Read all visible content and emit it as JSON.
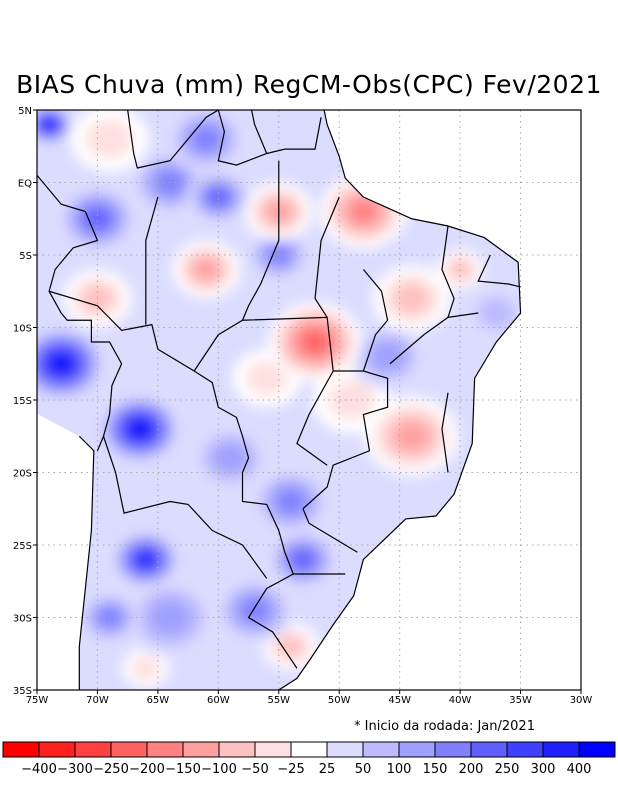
{
  "title": "BIAS Chuva (mm) RegCM-Obs(CPC) Fev/2021",
  "note": "* Inicio da rodada: Jan/2021",
  "chart_data": {
    "type": "heatmap",
    "title": "BIAS Chuva (mm) RegCM-Obs(CPC) Fev/2021",
    "lon_range": [
      -75,
      -30
    ],
    "lat_range": [
      -35,
      5
    ],
    "x_ticks": [
      {
        "v": -75,
        "label": "75W"
      },
      {
        "v": -70,
        "label": "70W"
      },
      {
        "v": -65,
        "label": "65W"
      },
      {
        "v": -60,
        "label": "60W"
      },
      {
        "v": -55,
        "label": "55W"
      },
      {
        "v": -50,
        "label": "50W"
      },
      {
        "v": -45,
        "label": "45W"
      },
      {
        "v": -40,
        "label": "40W"
      },
      {
        "v": -35,
        "label": "35W"
      },
      {
        "v": -30,
        "label": "30W"
      }
    ],
    "y_ticks": [
      {
        "v": 5,
        "label": "5N"
      },
      {
        "v": 0,
        "label": "EQ"
      },
      {
        "v": -5,
        "label": "5S"
      },
      {
        "v": -10,
        "label": "10S"
      },
      {
        "v": -15,
        "label": "15S"
      },
      {
        "v": -20,
        "label": "20S"
      },
      {
        "v": -25,
        "label": "25S"
      },
      {
        "v": -30,
        "label": "30S"
      },
      {
        "v": -35,
        "label": "35S"
      }
    ],
    "grid": true,
    "colorbar": {
      "levels": [
        "-400",
        "-300",
        "-250",
        "-200",
        "-150",
        "-100",
        "-50",
        "-25",
        "25",
        "50",
        "100",
        "150",
        "200",
        "250",
        "300",
        "400"
      ],
      "colors": [
        "#ff0000",
        "#ff2020",
        "#ff4040",
        "#ff6060",
        "#ff8080",
        "#ffa0a0",
        "#ffc0c0",
        "#ffe0e0",
        "#ffffff",
        "#dcdcff",
        "#bcbcff",
        "#a0a0ff",
        "#8080ff",
        "#6060ff",
        "#4040ff",
        "#2020ff",
        "#0000ff"
      ]
    },
    "anomaly_centers": [
      {
        "lon": -74,
        "lat": 4,
        "value": 400,
        "r": 1.5
      },
      {
        "lon": -73,
        "lat": -12.5,
        "value": 400,
        "r": 2.8
      },
      {
        "lon": -66.5,
        "lat": -17,
        "value": 400,
        "r": 2.6
      },
      {
        "lon": -66,
        "lat": -26,
        "value": 300,
        "r": 2.2
      },
      {
        "lon": -70,
        "lat": -2.5,
        "value": 200,
        "r": 2.5
      },
      {
        "lon": -55,
        "lat": -5,
        "value": 150,
        "r": 2
      },
      {
        "lon": -60,
        "lat": -1,
        "value": 200,
        "r": 2
      },
      {
        "lon": -64,
        "lat": 0,
        "value": 150,
        "r": 2.5
      },
      {
        "lon": -61,
        "lat": 3,
        "value": 150,
        "r": 2.5
      },
      {
        "lon": -54,
        "lat": -22,
        "value": 150,
        "r": 2.5
      },
      {
        "lon": -53,
        "lat": -26,
        "value": 200,
        "r": 2.2
      },
      {
        "lon": -57,
        "lat": -29.5,
        "value": 150,
        "r": 2.5
      },
      {
        "lon": -46,
        "lat": -12,
        "value": 100,
        "r": 2.5
      },
      {
        "lon": -37,
        "lat": -9,
        "value": 50,
        "r": 2
      },
      {
        "lon": -64,
        "lat": -30,
        "value": 100,
        "r": 3
      },
      {
        "lon": -59,
        "lat": -19,
        "value": 100,
        "r": 2.5
      },
      {
        "lon": -69,
        "lat": -30,
        "value": 150,
        "r": 2
      },
      {
        "lon": -52,
        "lat": -11,
        "value": -250,
        "r": 3
      },
      {
        "lon": -48,
        "lat": -2,
        "value": -200,
        "r": 2.8
      },
      {
        "lon": -55,
        "lat": -2,
        "value": -150,
        "r": 2.2
      },
      {
        "lon": -61,
        "lat": -6,
        "value": -150,
        "r": 2.2
      },
      {
        "lon": -44,
        "lat": -17.5,
        "value": -150,
        "r": 3
      },
      {
        "lon": -70,
        "lat": -8,
        "value": -100,
        "r": 2.2
      },
      {
        "lon": -44,
        "lat": -8,
        "value": -100,
        "r": 2.5
      },
      {
        "lon": -69,
        "lat": 3,
        "value": -50,
        "r": 2.5
      },
      {
        "lon": -54,
        "lat": -32,
        "value": -100,
        "r": 1.8
      },
      {
        "lon": -40,
        "lat": -6,
        "value": -100,
        "r": 1.5
      },
      {
        "lon": -56,
        "lat": -13.5,
        "value": -50,
        "r": 2.2
      },
      {
        "lon": -66,
        "lat": -33.5,
        "value": -50,
        "r": 1.5
      },
      {
        "lon": -49,
        "lat": -15,
        "value": -50,
        "r": 2.5
      }
    ]
  }
}
